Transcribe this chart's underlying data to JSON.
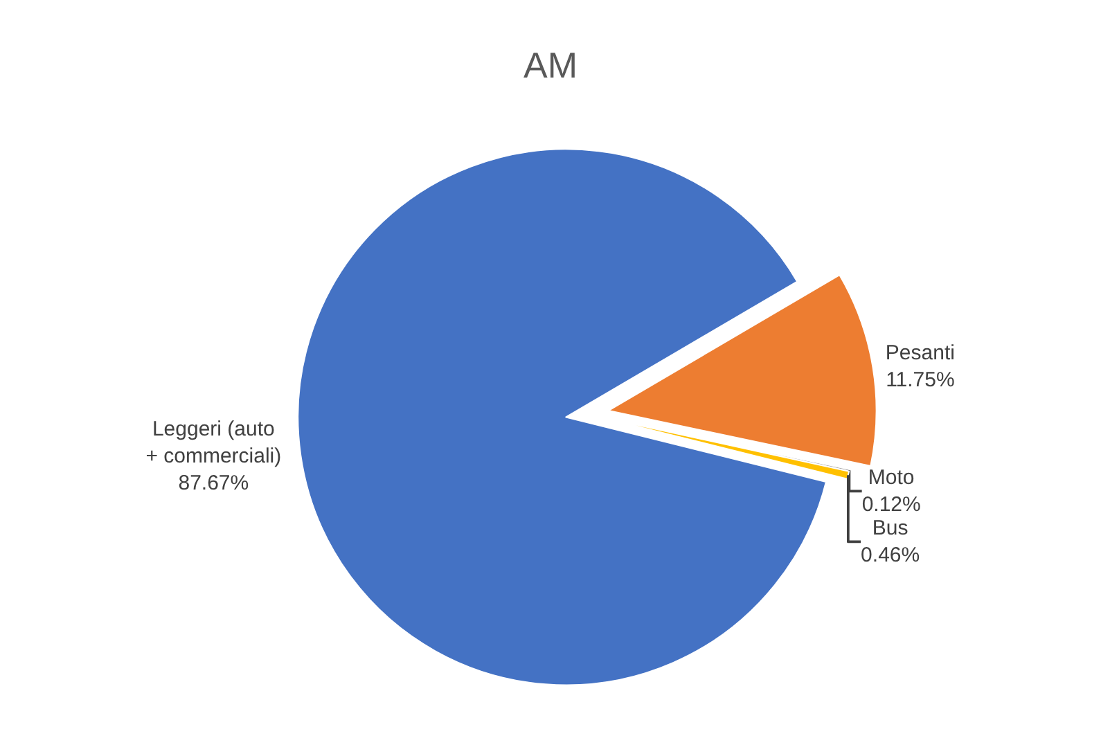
{
  "chart_data": {
    "type": "pie",
    "title": "AM",
    "categories": [
      "Leggeri (auto + commerciali)",
      "Pesanti",
      "Moto",
      "Bus"
    ],
    "values": [
      87.67,
      11.75,
      0.12,
      0.46
    ],
    "value_labels": [
      "87.67%",
      "11.75%",
      "0.12%",
      "0.46%"
    ],
    "colors": [
      "#4472c4",
      "#ed7d31",
      "#a5a5a5",
      "#ffc000"
    ],
    "legend": false
  }
}
